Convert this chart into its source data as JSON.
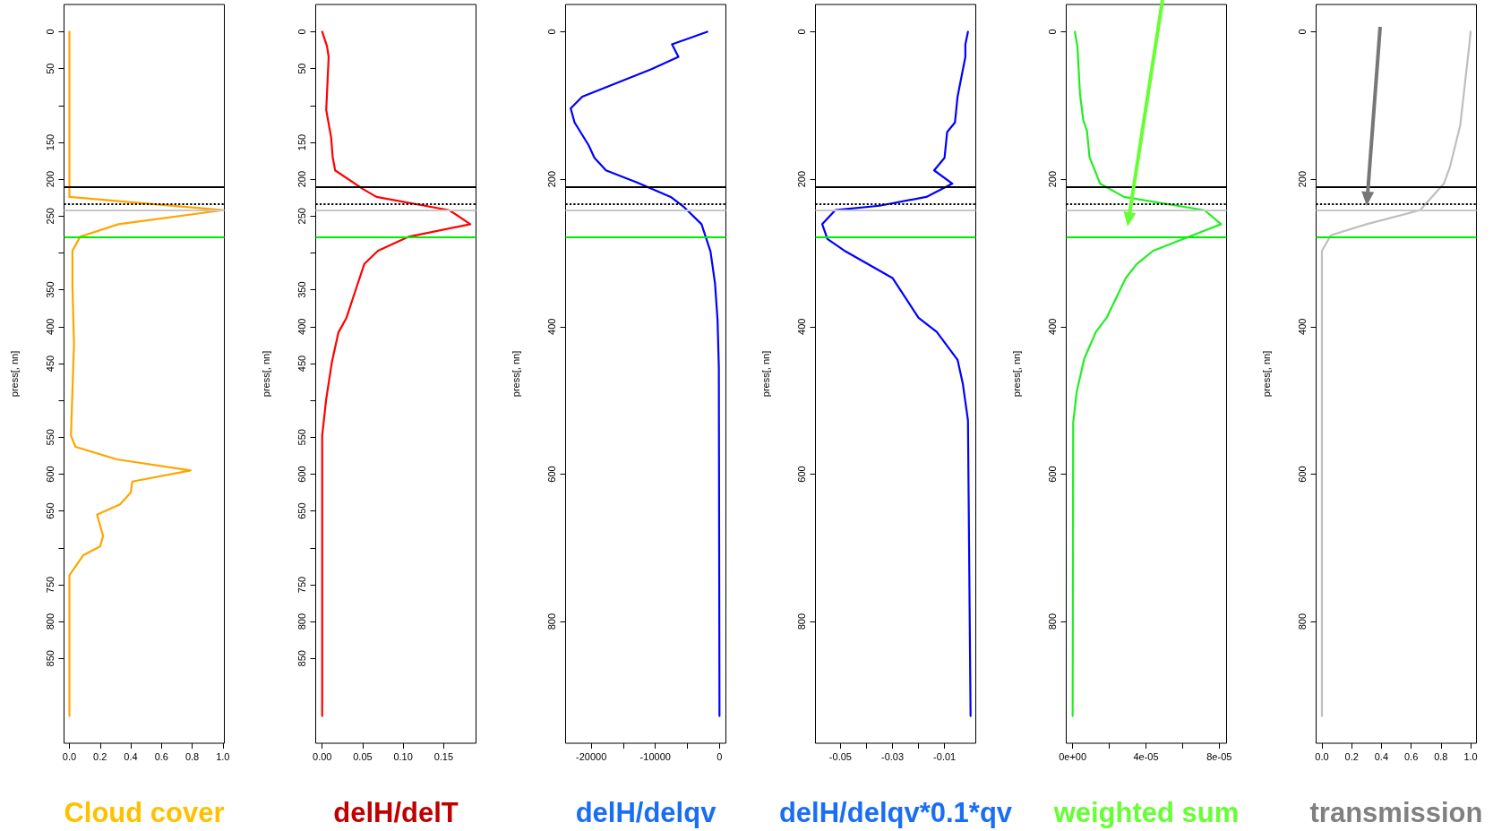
{
  "chart_data": [
    {
      "type": "line",
      "xlabel": "Cloud cover",
      "ylabel": "press[, nn]",
      "grid": false,
      "xlim": [
        -0.035,
        1.01
      ],
      "ylim": [
        965,
        -37
      ],
      "xticks": [
        {
          "value": 0,
          "label": "0.0"
        },
        {
          "value": 0.2,
          "label": "0.2"
        },
        {
          "value": 0.4,
          "label": "0.4"
        },
        {
          "value": 0.6,
          "label": "0.6"
        },
        {
          "value": 0.8,
          "label": "0.8"
        },
        {
          "value": 1,
          "label": "1.0"
        }
      ],
      "yticks": [
        0,
        50,
        {
          "value": 100,
          "label": null
        },
        150,
        200,
        250,
        {
          "value": 300,
          "label": null
        },
        350,
        400,
        450,
        {
          "value": 500,
          "label": null
        },
        550,
        600,
        650,
        {
          "value": 700,
          "label": null
        },
        750,
        800,
        850
      ],
      "x": [
        0,
        0,
        1,
        0.32,
        0.07,
        0.02,
        0.02,
        0.03,
        0.01,
        0.04,
        0.31,
        0.79,
        0.41,
        0.4,
        0.33,
        0.18,
        0.22,
        0.2,
        0.09,
        0,
        0
      ],
      "series": [
        {
          "color": "#ffa500",
          "values": [
            0,
            224,
            242,
            261,
            278,
            297,
            348,
            423,
            548,
            563,
            580,
            595,
            610,
            625,
            641,
            655,
            684,
            698,
            710,
            737,
            928
          ]
        }
      ],
      "ref_lines": [
        {
          "axis": "y",
          "value": 211,
          "color": "#000000",
          "line_style": "solid"
        },
        {
          "axis": "y",
          "value": 234,
          "color": "#000000",
          "line_style": "dotted"
        },
        {
          "axis": "y",
          "value": 242,
          "color": "#c8c8c8",
          "line_style": "solid"
        },
        {
          "axis": "y",
          "value": 278,
          "color": "#00ee00",
          "line_style": "solid"
        }
      ]
    },
    {
      "type": "line",
      "xlabel": "delH/delT",
      "ylabel": "press[, nn]",
      "grid": false,
      "xlim": [
        -0.008,
        0.19
      ],
      "ylim": [
        965,
        -37
      ],
      "xticks": [
        {
          "value": 0,
          "label": "0.00"
        },
        {
          "value": 0.05,
          "label": "0.05"
        },
        {
          "value": 0.1,
          "label": "0.10"
        },
        {
          "value": 0.15,
          "label": "0.15"
        }
      ],
      "yticks": [
        0,
        50,
        {
          "value": 100,
          "label": null
        },
        150,
        200,
        250,
        {
          "value": 300,
          "label": null
        },
        350,
        400,
        450,
        {
          "value": 500,
          "label": null
        },
        550,
        600,
        650,
        {
          "value": 700,
          "label": null
        },
        750,
        800,
        850
      ],
      "x": [
        0,
        0.006,
        0.008,
        0.005,
        0.011,
        0.013,
        0.016,
        0.05,
        0.067,
        0.157,
        0.183,
        0.107,
        0.069,
        0.052,
        0.042,
        0.03,
        0.02,
        0.012,
        0.005,
        0,
        0
      ],
      "series": [
        {
          "color": "#ff0000",
          "values": [
            0,
            20,
            34,
            106,
            143,
            170,
            188,
            213,
            224,
            242,
            261,
            278,
            297,
            315,
            348,
            388,
            408,
            448,
            498,
            548,
            928
          ]
        }
      ],
      "ref_lines": [
        {
          "axis": "y",
          "value": 211,
          "color": "#000000",
          "line_style": "solid"
        },
        {
          "axis": "y",
          "value": 234,
          "color": "#000000",
          "line_style": "dotted"
        },
        {
          "axis": "y",
          "value": 242,
          "color": "#c8c8c8",
          "line_style": "solid"
        },
        {
          "axis": "y",
          "value": 278,
          "color": "#00ee00",
          "line_style": "solid"
        }
      ]
    },
    {
      "type": "line",
      "xlabel": "delH/delqv",
      "ylabel": "press[, nn]",
      "grid": false,
      "xlim": [
        -24000,
        1000
      ],
      "ylim": [
        965,
        -37
      ],
      "xticks": [
        -20000,
        {
          "value": -15000,
          "label": null
        },
        -10000,
        {
          "value": -5000,
          "label": null
        },
        0
      ],
      "yticks": [
        0,
        200,
        400,
        600,
        800
      ],
      "x": [
        -1900,
        -7400,
        -6400,
        -10700,
        -21400,
        -23200,
        -22600,
        -20400,
        -19500,
        -17700,
        -12700,
        -7600,
        -5500,
        -2800,
        -1400,
        -700,
        -300,
        -100,
        0
      ],
      "series": [
        {
          "color": "#0000ff",
          "values": [
            0,
            17,
            34,
            51,
            88,
            104,
            123,
            154,
            171,
            188,
            205,
            224,
            238,
            261,
            298,
            341,
            391,
            455,
            928
          ]
        }
      ],
      "ref_lines": [
        {
          "axis": "y",
          "value": 211,
          "color": "#000000",
          "line_style": "solid"
        },
        {
          "axis": "y",
          "value": 234,
          "color": "#000000",
          "line_style": "dotted"
        },
        {
          "axis": "y",
          "value": 242,
          "color": "#c8c8c8",
          "line_style": "solid"
        },
        {
          "axis": "y",
          "value": 278,
          "color": "#00ee00",
          "line_style": "solid"
        }
      ]
    },
    {
      "type": "line",
      "xlabel": "delH/delqv*0.1*qv",
      "ylabel": "press[, nn]",
      "grid": false,
      "xlim": [
        -0.0596,
        0.002
      ],
      "ylim": [
        965,
        -37
      ],
      "xticks": [
        -0.05,
        {
          "value": -0.04,
          "label": null
        },
        -0.03,
        {
          "value": -0.02,
          "label": null
        },
        -0.01
      ],
      "yticks": [
        0,
        200,
        400,
        600,
        800
      ],
      "x": [
        -0.001,
        -0.002,
        -0.002,
        -0.005,
        -0.006,
        -0.009,
        -0.01,
        -0.014,
        -0.007,
        -0.017,
        -0.035,
        -0.052,
        -0.057,
        -0.055,
        -0.048,
        -0.03,
        -0.02,
        -0.013,
        -0.005,
        -0.003,
        -0.001,
        0
      ],
      "series": [
        {
          "color": "#0000ff",
          "values": [
            0,
            17,
            34,
            88,
            123,
            136,
            171,
            188,
            206,
            224,
            236,
            242,
            261,
            281,
            298,
            334,
            388,
            407,
            445,
            477,
            527,
            928
          ]
        }
      ],
      "ref_lines": [
        {
          "axis": "y",
          "value": 211,
          "color": "#000000",
          "line_style": "solid"
        },
        {
          "axis": "y",
          "value": 234,
          "color": "#000000",
          "line_style": "dotted"
        },
        {
          "axis": "y",
          "value": 242,
          "color": "#c8c8c8",
          "line_style": "solid"
        },
        {
          "axis": "y",
          "value": 278,
          "color": "#00ee00",
          "line_style": "solid"
        }
      ]
    },
    {
      "type": "line",
      "xlabel": "weighted sum",
      "ylabel": "press[, nn]",
      "grid": false,
      "xlim": [
        -3.5e-06,
        8.4e-05
      ],
      "ylim": [
        965,
        -37
      ],
      "xticks": [
        {
          "value": 0,
          "label": "0e+00"
        },
        {
          "value": 2e-05,
          "label": null
        },
        {
          "value": 4e-05,
          "label": "4e-05"
        },
        {
          "value": 6e-05,
          "label": null
        },
        {
          "value": 8e-05,
          "label": "8e-05"
        }
      ],
      "yticks": [
        0,
        200,
        400,
        600,
        800
      ],
      "x": [
        1.2e-06,
        2.6e-06,
        4e-06,
        5.8e-06,
        7.8e-06,
        9.2e-06,
        1.5e-05,
        2.8e-05,
        7.2e-05,
        8.1e-05,
        4.4e-05,
        3.5e-05,
        2.9e-05,
        1.85e-05,
        1.27e-05,
        6.4e-06,
        2.3e-06,
        3e-07,
        0
      ],
      "series": [
        {
          "color": "#22ee22",
          "values": [
            0,
            20,
            84,
            120,
            134,
            170,
            206,
            224,
            242,
            261,
            297,
            315,
            334,
            388,
            407,
            443,
            487,
            530,
            928
          ]
        }
      ],
      "ref_lines": [
        {
          "axis": "y",
          "value": 211,
          "color": "#000000",
          "line_style": "solid"
        },
        {
          "axis": "y",
          "value": 234,
          "color": "#000000",
          "line_style": "dotted"
        },
        {
          "axis": "y",
          "value": 242,
          "color": "#c8c8c8",
          "line_style": "solid"
        },
        {
          "axis": "y",
          "value": 278,
          "color": "#00ee00",
          "line_style": "solid"
        }
      ]
    },
    {
      "type": "line",
      "xlabel": "transmission",
      "ylabel": "press[, nn]",
      "grid": false,
      "xlim": [
        -0.039,
        1.039
      ],
      "ylim": [
        965,
        -37
      ],
      "xticks": [
        {
          "value": 0,
          "label": "0.0"
        },
        {
          "value": 0.2,
          "label": "0.2"
        },
        {
          "value": 0.4,
          "label": "0.4"
        },
        {
          "value": 0.6,
          "label": "0.6"
        },
        {
          "value": 0.8,
          "label": "0.8"
        },
        {
          "value": 1,
          "label": "1.0"
        }
      ],
      "yticks": [
        0,
        200,
        400,
        600,
        800
      ],
      "x": [
        1,
        0.99,
        0.93,
        0.86,
        0.82,
        0.66,
        0.3,
        0.06,
        0,
        0
      ],
      "series": [
        {
          "color": "#bebebe",
          "values": [
            0,
            20,
            127,
            184,
            206,
            242,
            261,
            276,
            297,
            928
          ]
        }
      ],
      "ref_lines": [
        {
          "axis": "y",
          "value": 211,
          "color": "#000000",
          "line_style": "solid"
        },
        {
          "axis": "y",
          "value": 234,
          "color": "#000000",
          "line_style": "dotted"
        },
        {
          "axis": "y",
          "value": 242,
          "color": "#c8c8c8",
          "line_style": "solid"
        },
        {
          "axis": "y",
          "value": 278,
          "color": "#00ee00",
          "line_style": "solid"
        }
      ]
    }
  ]
}
